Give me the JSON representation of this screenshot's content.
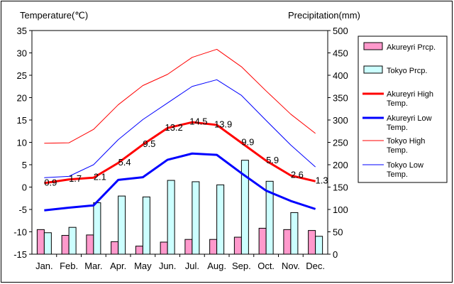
{
  "chart_data": {
    "type": "bar+line",
    "categories": [
      "Jan.",
      "Feb.",
      "Mar.",
      "Apr.",
      "May",
      "Jun.",
      "Jul.",
      "Aug.",
      "Sep.",
      "Oct.",
      "Nov.",
      "Dec."
    ],
    "left_axis": {
      "label": "Temperature(℃)",
      "range": [
        -15,
        35
      ],
      "ticks": [
        -15,
        -10,
        -5,
        0,
        5,
        10,
        15,
        20,
        25,
        30,
        35
      ]
    },
    "right_axis": {
      "label": "Precipitation(mm)",
      "range": [
        0,
        500
      ],
      "ticks": [
        0,
        50,
        100,
        150,
        200,
        250,
        300,
        350,
        400,
        450,
        500
      ]
    },
    "bars": [
      {
        "name": "Akureyri Prcp.",
        "color": "#ff99cc",
        "values": [
          55,
          42,
          43,
          28,
          18,
          27,
          33,
          33,
          38,
          58,
          55,
          53
        ]
      },
      {
        "name": "Tokyo Prcp.",
        "color": "#ccffff",
        "values": [
          48,
          60,
          115,
          130,
          128,
          165,
          162,
          155,
          210,
          163,
          93,
          40
        ]
      }
    ],
    "lines": [
      {
        "name": "Akureyri High Temp.",
        "color": "#ff0000",
        "width": 3,
        "values": [
          0.9,
          1.7,
          2.1,
          5.4,
          9.5,
          13.2,
          14.5,
          13.9,
          9.9,
          5.9,
          2.6,
          1.3
        ]
      },
      {
        "name": "Akureyri Low Temp.",
        "color": "#0000ff",
        "width": 3,
        "values": [
          -5.2,
          -4.6,
          -4.1,
          1.6,
          2.2,
          6.1,
          7.5,
          7.2,
          3.1,
          -0.8,
          -3.1,
          -4.9
        ]
      },
      {
        "name": "Tokyo High Temp.",
        "color": "#ff0000",
        "width": 1,
        "values": [
          9.8,
          9.9,
          12.9,
          18.4,
          22.7,
          25.2,
          29.0,
          30.8,
          26.9,
          21.5,
          16.3,
          12.0
        ]
      },
      {
        "name": "Tokyo Low Temp.",
        "color": "#0000ff",
        "width": 1,
        "values": [
          2.1,
          2.4,
          5.0,
          10.6,
          15.1,
          18.8,
          22.5,
          24.0,
          20.5,
          14.9,
          9.4,
          4.5
        ]
      }
    ],
    "data_labels": [
      "0.9",
      "1.7",
      "2.1",
      "5.4",
      "9.5",
      "13.2",
      "14.5",
      "13.9",
      "9.9",
      "5.9",
      "2.6",
      "1.3"
    ],
    "legend_position": "right",
    "grid": false
  }
}
